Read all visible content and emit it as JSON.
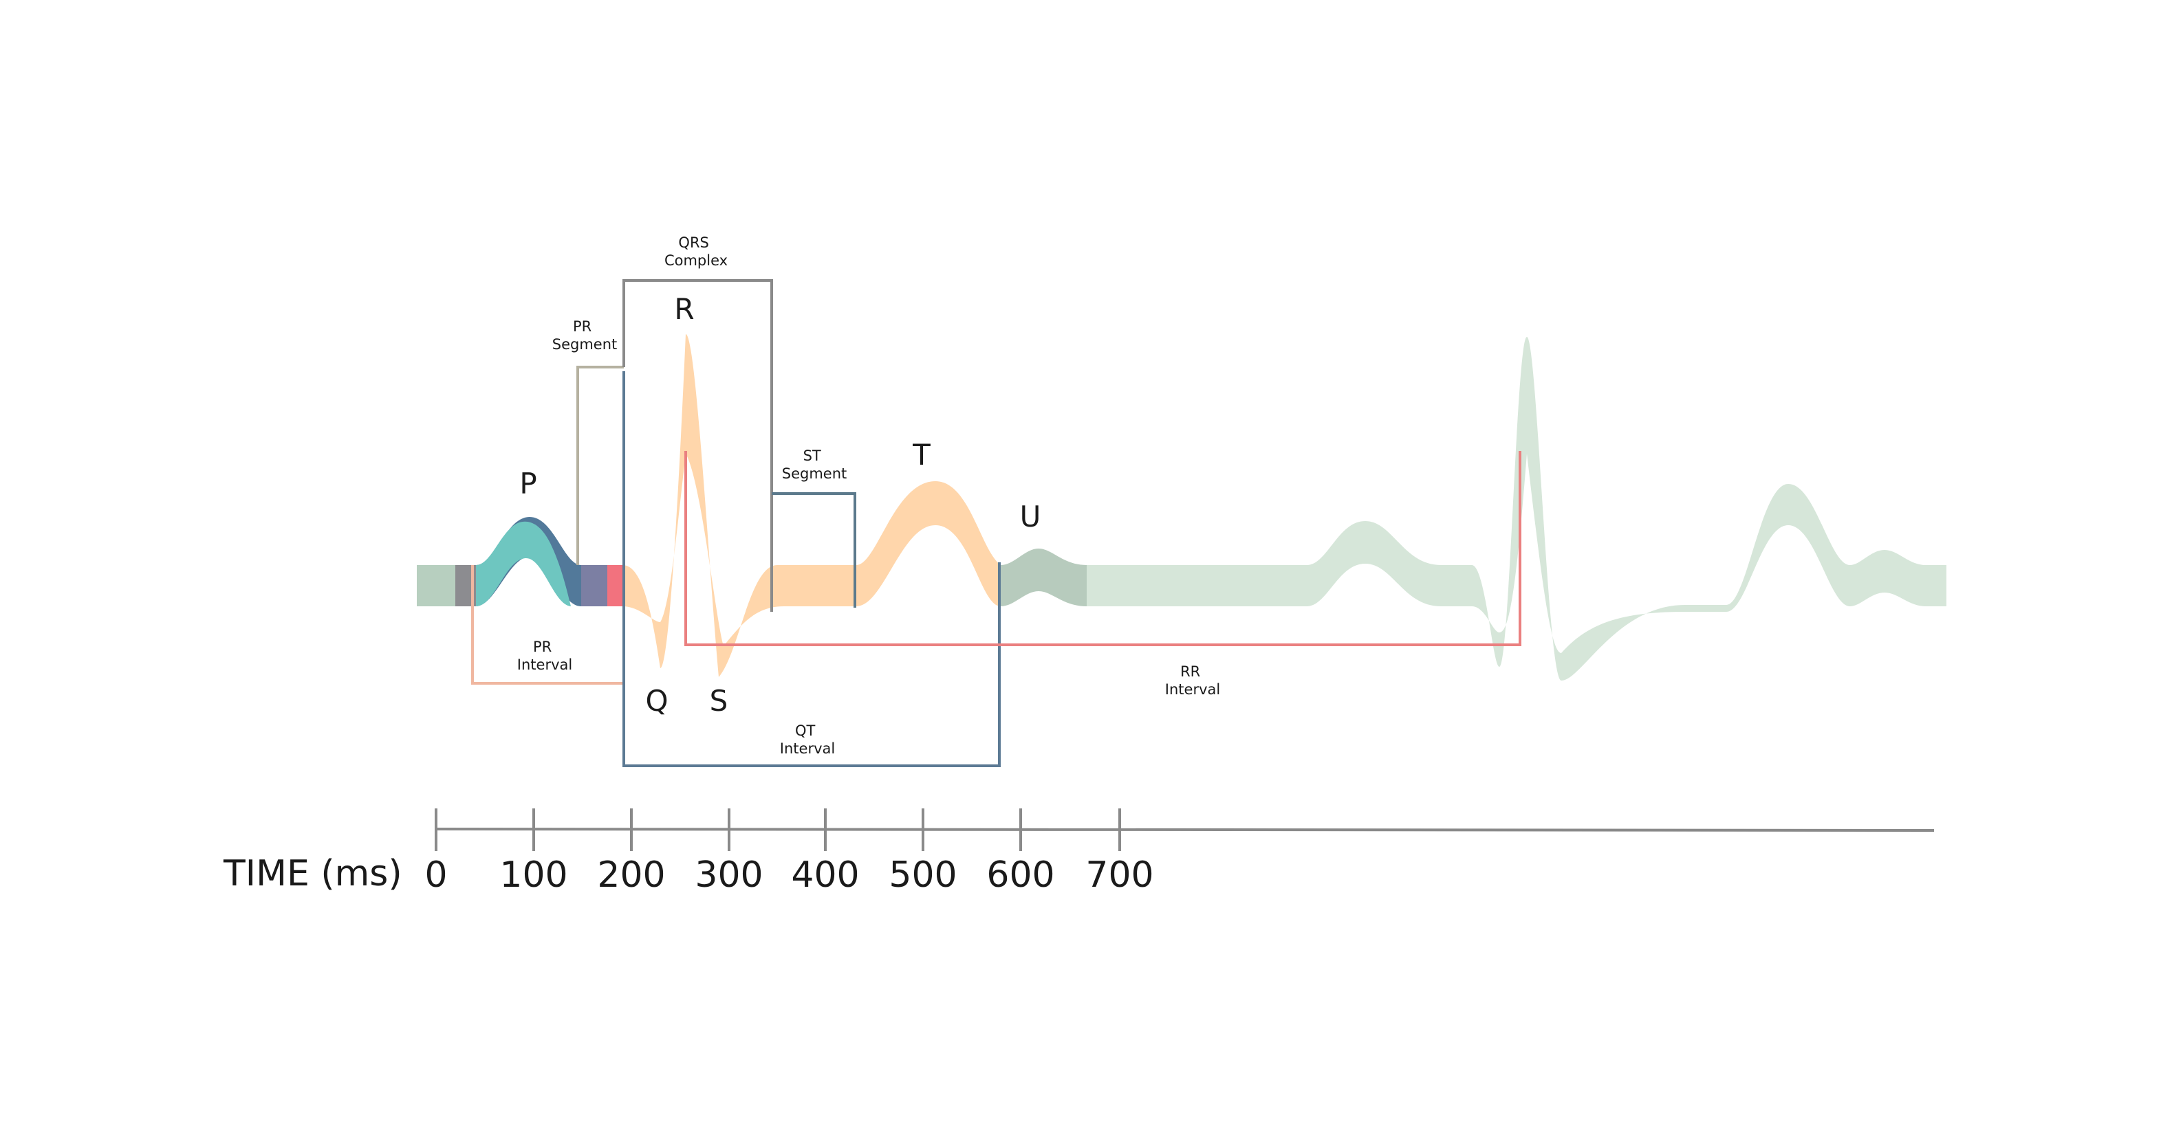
{
  "waves": {
    "p": "P",
    "q": "Q",
    "r": "R",
    "s": "S",
    "t": "T",
    "u": "U"
  },
  "intervals": {
    "qrs_complex": [
      "QRS",
      "Complex"
    ],
    "pr_segment": [
      "PR",
      "Segment"
    ],
    "st_segment": [
      "ST",
      "Segment"
    ],
    "pr_interval": [
      "PR",
      "Interval"
    ],
    "qt_interval": [
      "QT",
      "Interval"
    ],
    "rr_interval": [
      "RR",
      "Interval"
    ]
  },
  "axis": {
    "title": "TIME (ms)",
    "ticks": [
      "0",
      "100",
      "200",
      "300",
      "400",
      "500",
      "600",
      "700"
    ]
  },
  "colors": {
    "trace_main": "#ffd4a6",
    "trace_faded": "#d6e6d9",
    "baseline_start": "#b7cfbf",
    "p_wave_front": "#6ec6c0",
    "p_wave_back": "#52799a",
    "pr_segment_fill": "#7c7fa3",
    "pr_end_fill": "#f2727e",
    "u_wave": "#b7cbbd",
    "pr_interval_line": "#f0b7a0",
    "pr_segment_line": "#b5b1a0",
    "qrs_line": "#8a8a8a",
    "st_line": "#5c7a8c",
    "qt_line": "#5c7a94",
    "rr_line": "#ea8080",
    "axis_line": "#8a8a8a"
  }
}
